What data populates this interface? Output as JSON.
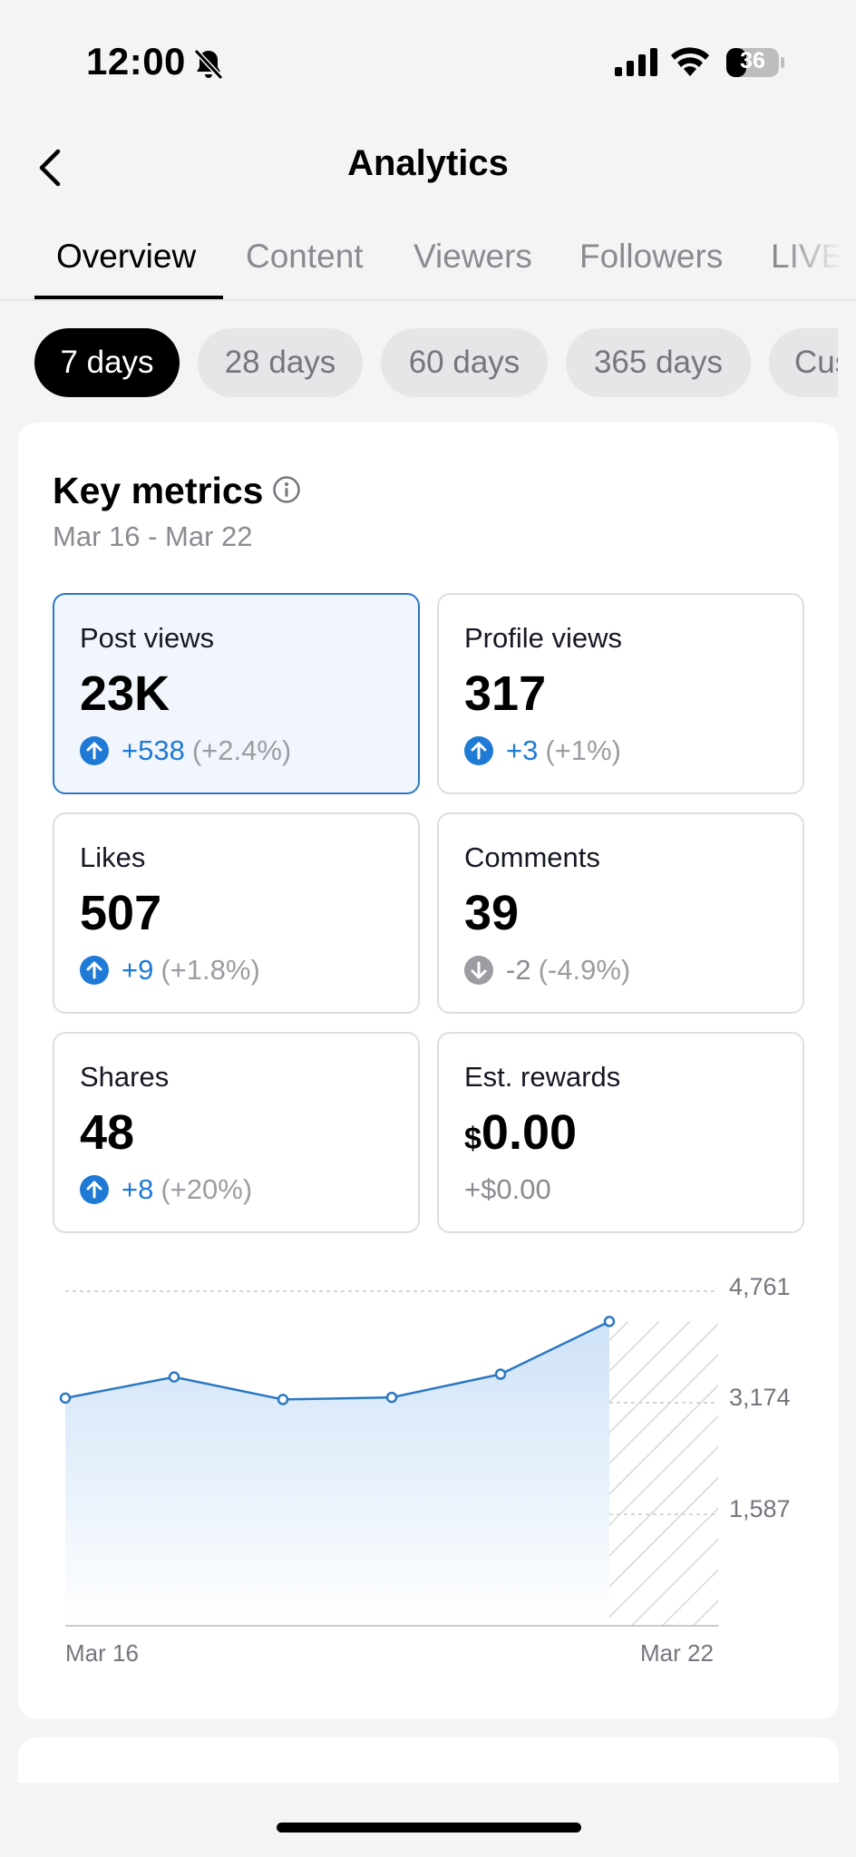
{
  "status_bar": {
    "time": "12:00",
    "battery": "36"
  },
  "header": {
    "title": "Analytics"
  },
  "tabs": [
    {
      "label": "Overview",
      "active": true
    },
    {
      "label": "Content",
      "active": false
    },
    {
      "label": "Viewers",
      "active": false
    },
    {
      "label": "Followers",
      "active": false
    },
    {
      "label": "LIVE",
      "active": false
    }
  ],
  "periods": [
    {
      "label": "7 days",
      "active": true
    },
    {
      "label": "28 days",
      "active": false
    },
    {
      "label": "60 days",
      "active": false
    },
    {
      "label": "365 days",
      "active": false
    },
    {
      "label": "Custom",
      "active": false
    }
  ],
  "key_metrics": {
    "title": "Key metrics",
    "date_range": "Mar 16 - Mar 22",
    "items": [
      {
        "label": "Post views",
        "value": "23K",
        "delta": "+538",
        "pct": "(+2.4%)",
        "direction": "up",
        "selected": true
      },
      {
        "label": "Profile views",
        "value": "317",
        "delta": "+3",
        "pct": "(+1%)",
        "direction": "up",
        "selected": false
      },
      {
        "label": "Likes",
        "value": "507",
        "delta": "+9",
        "pct": "(+1.8%)",
        "direction": "up",
        "selected": false
      },
      {
        "label": "Comments",
        "value": "39",
        "delta": "-2",
        "pct": "(-4.9%)",
        "direction": "down",
        "selected": false
      },
      {
        "label": "Shares",
        "value": "48",
        "delta": "+8",
        "pct": "(+20%)",
        "direction": "up",
        "selected": false
      },
      {
        "label": "Est. rewards",
        "currency": "$",
        "value": "0.00",
        "delta": "+$0.00",
        "pct": "",
        "direction": "none",
        "selected": false
      }
    ]
  },
  "colors": {
    "accent": "#1f7ad6",
    "selected_border": "#2b78c2",
    "selected_bg": "#f1f6fc"
  },
  "chart_data": {
    "type": "area",
    "series": [
      {
        "values": [
          3240,
          3540,
          3220,
          3250,
          3580,
          4330
        ]
      }
    ],
    "x": [
      "Mar 16",
      "Mar 17",
      "Mar 18",
      "Mar 19",
      "Mar 20",
      "Mar 21"
    ],
    "x_ticks": [
      "Mar 16",
      "Mar 22"
    ],
    "y_ticks": [
      "4,761",
      "3,174",
      "1,587"
    ],
    "ylim": [
      0,
      4761
    ],
    "hatched_last_day": "Mar 22",
    "grid": true
  }
}
